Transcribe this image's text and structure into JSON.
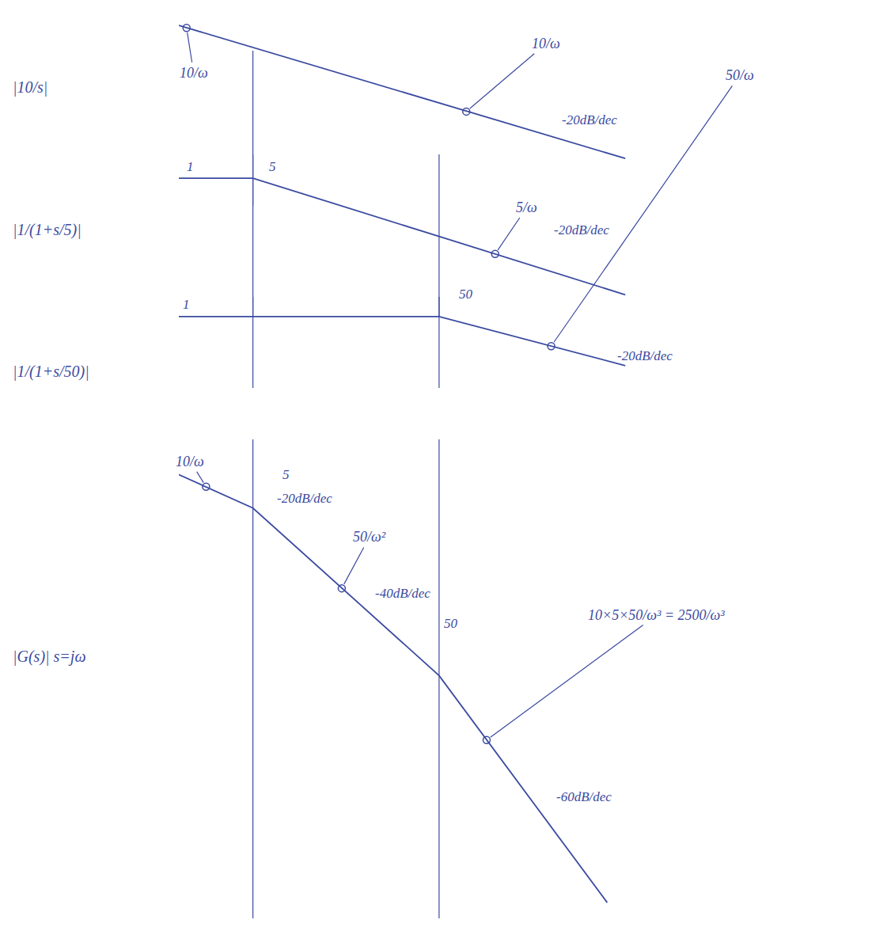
{
  "chart_data": [
    {
      "type": "line",
      "label": "|10/s|",
      "color": "#3a4aa0",
      "marker": "circle-open",
      "log": true,
      "tick_labels": false,
      "x": [
        2,
        5,
        50,
        500
      ],
      "values": [
        5,
        2,
        0.2,
        0.02
      ],
      "xlim": [
        2,
        1000
      ],
      "ylim": [
        0.0028,
        8.75
      ],
      "vlines": [
        5
      ],
      "annotations": [
        {
          "text": "10/ω",
          "x": 2.2,
          "y": 4.5
        },
        {
          "text": "10/ω",
          "x": 70,
          "y": 0.14
        }
      ],
      "texts": [
        {
          "text": "-20dB/dec",
          "x": 320,
          "y": 0.1
        },
        {
          "text": "5",
          "x": 6.4,
          "y": 0.0144
        }
      ]
    },
    {
      "type": "line",
      "label": "|1/(1+s/5)|",
      "color": "#3a4aa0",
      "marker": "circle-open",
      "log": true,
      "tick_labels": false,
      "x": [
        2,
        5,
        50,
        500
      ],
      "values": [
        1,
        1,
        0.1,
        0.01
      ],
      "xlim": [
        2,
        1000
      ],
      "ylim": [
        0.0042,
        2.56
      ],
      "vlines": [
        5,
        50
      ],
      "annotations": [
        {
          "text": "5/ω",
          "x": 100,
          "y": 0.05
        }
      ],
      "texts": [
        {
          "text": "1",
          "x": 2.3,
          "y": 1.6
        },
        {
          "text": "-20dB/dec",
          "x": 290,
          "y": 0.13
        },
        {
          "text": "50",
          "x": 70,
          "y": 0.0102
        }
      ]
    },
    {
      "type": "line",
      "label": "|1/(1+s/50)|",
      "color": "#3a4aa0",
      "marker": "circle-open",
      "log": true,
      "tick_labels": false,
      "x": [
        2,
        5,
        50,
        500
      ],
      "values": [
        1,
        1,
        1,
        0.1
      ],
      "xlim": [
        2,
        1000
      ],
      "ylim": [
        0.035,
        2.53
      ],
      "vlines": [
        5,
        50
      ],
      "annotations": [
        {
          "text": "50/ω",
          "x": 200,
          "y": 0.25
        }
      ],
      "texts": [
        {
          "text": "1",
          "x": 2.2,
          "y": 1.75
        },
        {
          "text": "-20dB/dec",
          "x": 640,
          "y": 0.156
        }
      ]
    },
    {
      "type": "line",
      "label": "|G(s)| s=jω",
      "color": "#3a4aa0",
      "marker": "circle-open",
      "log": true,
      "tick_labels": false,
      "x": [
        2,
        5,
        50,
        400
      ],
      "values": [
        5,
        2,
        0.02,
        3.9e-05
      ],
      "xlim": [
        2,
        1000
      ],
      "ylim": [
        2.53e-05,
        13.2
      ],
      "vlines": [
        5,
        50
      ],
      "annotations": [
        {
          "text": "10/ω",
          "x": 2.8,
          "y": 3.6
        },
        {
          "text": "50/ω²",
          "x": 15,
          "y": 0.22
        },
        {
          "text": "10×5×50/ω³ = 2500/ω³",
          "x": 90,
          "y": 0.0034
        }
      ],
      "texts": [
        {
          "text": "5",
          "x": 7.55,
          "y": 5
        },
        {
          "text": "-20dB/dec",
          "x": 9.5,
          "y": 2.6
        },
        {
          "text": "-40dB/dec",
          "x": 32,
          "y": 0.19
        },
        {
          "text": "50",
          "x": 58,
          "y": 0.083
        },
        {
          "text": "-60dB/dec",
          "x": 300,
          "y": 0.00072
        }
      ]
    }
  ]
}
